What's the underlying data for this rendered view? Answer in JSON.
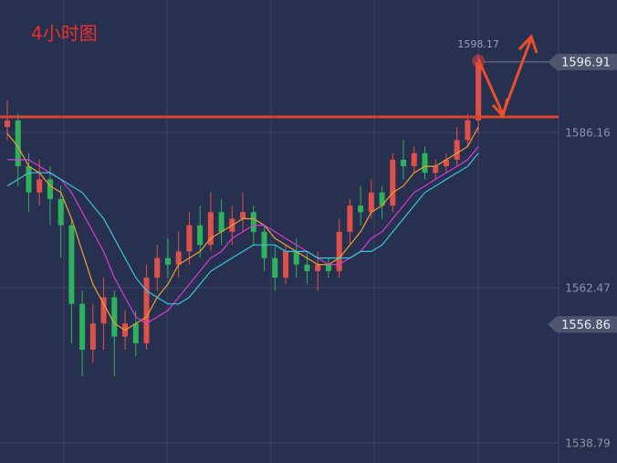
{
  "chart_data": {
    "type": "candlestick",
    "title": "4小时图",
    "ylim": [
      1535.72,
      1606.37
    ],
    "yticks": [
      1586.16,
      1562.47,
      1538.79
    ],
    "grid": true,
    "up_color": "#e0504a",
    "down_color": "#2fb25c",
    "ohlc": [
      [
        1587,
        1591,
        1585,
        1588
      ],
      [
        1588,
        1589,
        1578,
        1581
      ],
      [
        1581,
        1583,
        1574,
        1577
      ],
      [
        1577,
        1582,
        1575,
        1579
      ],
      [
        1579,
        1581,
        1572,
        1576
      ],
      [
        1576,
        1578,
        1567,
        1572
      ],
      [
        1572,
        1573,
        1554,
        1560
      ],
      [
        1560,
        1562,
        1549,
        1553
      ],
      [
        1553,
        1560,
        1551,
        1557
      ],
      [
        1557,
        1564,
        1553,
        1561
      ],
      [
        1561,
        1562,
        1549,
        1555
      ],
      [
        1555,
        1559,
        1553,
        1557
      ],
      [
        1557,
        1559,
        1552,
        1554
      ],
      [
        1554,
        1566,
        1553,
        1564
      ],
      [
        1564,
        1569,
        1562,
        1567
      ],
      [
        1567,
        1570,
        1564,
        1566
      ],
      [
        1566,
        1571,
        1564,
        1568
      ],
      [
        1568,
        1574,
        1566,
        1572
      ],
      [
        1572,
        1575,
        1567,
        1569
      ],
      [
        1569,
        1577,
        1568,
        1574
      ],
      [
        1574,
        1576,
        1569,
        1571
      ],
      [
        1571,
        1575,
        1569,
        1573
      ],
      [
        1573,
        1577,
        1571,
        1574
      ],
      [
        1574,
        1575,
        1569,
        1571
      ],
      [
        1571,
        1572,
        1565,
        1567
      ],
      [
        1567,
        1569,
        1562,
        1564
      ],
      [
        1564,
        1569,
        1563,
        1568
      ],
      [
        1568,
        1570,
        1564,
        1566
      ],
      [
        1566,
        1568,
        1563,
        1565
      ],
      [
        1565,
        1568,
        1562,
        1566
      ],
      [
        1566,
        1567,
        1564,
        1565
      ],
      [
        1565,
        1573,
        1564,
        1571
      ],
      [
        1571,
        1576,
        1569,
        1575
      ],
      [
        1575,
        1578,
        1572,
        1574
      ],
      [
        1574,
        1579,
        1573,
        1577
      ],
      [
        1577,
        1578,
        1573,
        1575
      ],
      [
        1575,
        1583,
        1574,
        1582
      ],
      [
        1582,
        1585,
        1579,
        1581
      ],
      [
        1581,
        1584,
        1580,
        1583
      ],
      [
        1583,
        1584,
        1579,
        1580
      ],
      [
        1580,
        1582,
        1579,
        1581
      ],
      [
        1581,
        1583,
        1580,
        1582
      ],
      [
        1582,
        1587,
        1581,
        1585
      ],
      [
        1585,
        1589,
        1584,
        1588
      ],
      [
        1588,
        1598.17,
        1586,
        1596.91
      ]
    ],
    "series": [
      {
        "color": "#f0a030",
        "values": [
          1586,
          1584,
          1581,
          1580,
          1578,
          1577,
          1573,
          1568,
          1563,
          1560,
          1557,
          1556,
          1557,
          1558,
          1561,
          1563,
          1566,
          1567,
          1568,
          1570,
          1571,
          1572,
          1573,
          1573,
          1572,
          1570,
          1569,
          1568,
          1567,
          1566,
          1566,
          1567,
          1569,
          1571,
          1574,
          1575,
          1577,
          1578,
          1580,
          1581,
          1581,
          1582,
          1583,
          1584,
          1587
        ]
      },
      {
        "color": "#d63ad6",
        "values": [
          1582,
          1582,
          1582,
          1581,
          1580,
          1579,
          1577,
          1574,
          1571,
          1568,
          1564,
          1561,
          1558,
          1557,
          1558,
          1559,
          1561,
          1563,
          1565,
          1567,
          1568,
          1570,
          1571,
          1572,
          1572,
          1571,
          1570,
          1569,
          1568,
          1567,
          1566,
          1566,
          1567,
          1568,
          1570,
          1571,
          1573,
          1575,
          1577,
          1578,
          1579,
          1580,
          1581,
          1582,
          1584
        ]
      },
      {
        "color": "#3cc8d8",
        "values": [
          1578,
          1579,
          1580,
          1580,
          1580,
          1579,
          1578,
          1577,
          1575,
          1573,
          1570,
          1567,
          1564,
          1562,
          1561,
          1560,
          1560,
          1561,
          1563,
          1565,
          1566,
          1567,
          1568,
          1569,
          1569,
          1569,
          1568,
          1568,
          1568,
          1567,
          1567,
          1567,
          1567,
          1568,
          1568,
          1569,
          1571,
          1573,
          1575,
          1577,
          1578,
          1579,
          1580,
          1581,
          1583
        ]
      }
    ],
    "level_line": {
      "value": 1588.53,
      "color": "#d9442b"
    },
    "high_label": 1598.17,
    "price_tags": [
      1596.91,
      1556.86
    ]
  }
}
